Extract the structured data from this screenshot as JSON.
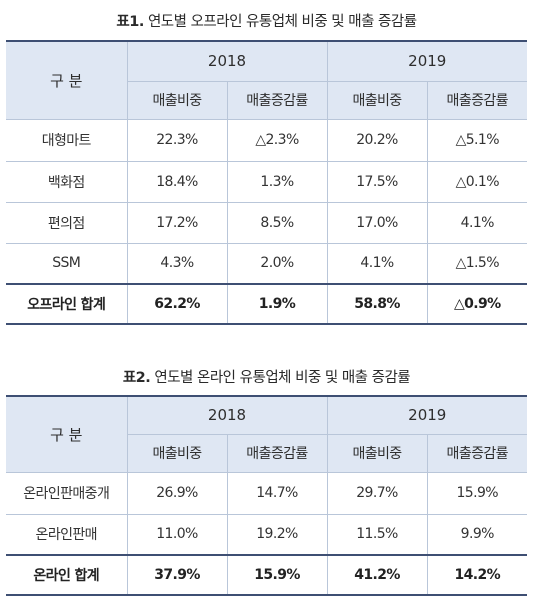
{
  "table1": {
    "caption_prefix": "표1.",
    "caption_text": "연도별 오프라인 유통업체 비중 및 매출 증감률",
    "header": {
      "category": "구 분",
      "years": [
        "2018",
        "2019"
      ],
      "share_label": "매출비중",
      "growth_label": "매출증감률"
    },
    "rows": [
      {
        "name": "대형마트",
        "values": [
          "22.3%",
          "△2.3%",
          "20.2%",
          "△5.1%"
        ]
      },
      {
        "name": "백화점",
        "values": [
          "18.4%",
          "1.3%",
          "17.5%",
          "△0.1%"
        ]
      },
      {
        "name": "편의점",
        "values": [
          "17.2%",
          "8.5%",
          "17.0%",
          "4.1%"
        ]
      },
      {
        "name": "SSM",
        "values": [
          "4.3%",
          "2.0%",
          "4.1%",
          "△1.5%"
        ]
      }
    ],
    "total": {
      "name": "오프라인 합계",
      "values": [
        "62.2%",
        "1.9%",
        "58.8%",
        "△0.9%"
      ]
    }
  },
  "table2": {
    "caption_prefix": "표2.",
    "caption_text": "연도별 온라인 유통업체 비중 및 매출 증감률",
    "header": {
      "category": "구 분",
      "years": [
        "2018",
        "2019"
      ],
      "share_label": "매출비중",
      "growth_label": "매출증감률"
    },
    "rows": [
      {
        "name": "온라인판매중개",
        "values": [
          "26.9%",
          "14.7%",
          "29.7%",
          "15.9%"
        ]
      },
      {
        "name": "온라인판매",
        "values": [
          "11.0%",
          "19.2%",
          "11.5%",
          "9.9%"
        ]
      }
    ],
    "total": {
      "name": "온라인 합계",
      "values": [
        "37.9%",
        "15.9%",
        "41.2%",
        "14.2%"
      ]
    }
  }
}
